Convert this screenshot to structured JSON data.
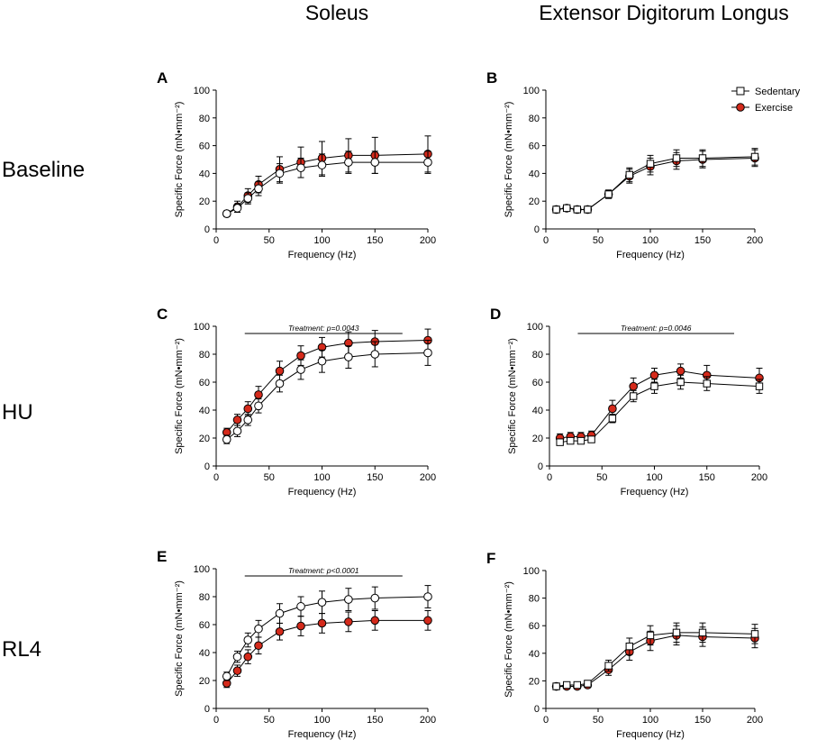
{
  "column_titles": [
    "Soleus",
    "Extensor Digitorum Longus"
  ],
  "row_titles": [
    "Baseline",
    "HU",
    "RL4"
  ],
  "legend": [
    {
      "label": "Sedentary",
      "marker": "open-square",
      "color": "#ffffff"
    },
    {
      "label": "Exercise",
      "marker": "filled-circle",
      "color": "#d42a1b"
    }
  ],
  "chart_data": [
    {
      "panel": "A",
      "type": "line",
      "muscle": "Soleus",
      "condition": "Baseline",
      "xlabel": "Frequency (Hz)",
      "ylabel": "Specific Force (mN•mm⁻²)",
      "xlim": [
        0,
        200
      ],
      "ylim": [
        0,
        100
      ],
      "xticks": [
        0,
        50,
        100,
        150,
        200
      ],
      "yticks": [
        0,
        20,
        40,
        60,
        80,
        100
      ],
      "x": [
        10,
        20,
        30,
        40,
        60,
        80,
        100,
        125,
        150,
        200
      ],
      "series": [
        {
          "name": "Sedentary",
          "marker": "circle",
          "filled": false,
          "values": [
            11,
            15,
            22,
            29,
            40,
            44,
            46,
            48,
            48,
            48
          ],
          "error": [
            2,
            3,
            4,
            5,
            7,
            7,
            8,
            8,
            8,
            8
          ]
        },
        {
          "name": "Exercise",
          "marker": "circle",
          "filled": true,
          "values": [
            11,
            16,
            24,
            32,
            43,
            48,
            51,
            53,
            53,
            54
          ],
          "error": [
            2,
            4,
            5,
            6,
            9,
            11,
            12,
            12,
            13,
            13
          ]
        }
      ],
      "annotation": null
    },
    {
      "panel": "B",
      "type": "line",
      "muscle": "Extensor Digitorum Longus",
      "condition": "Baseline",
      "xlabel": "Frequency (Hz)",
      "ylabel": "Specific Force (mN•mm⁻²)",
      "xlim": [
        0,
        200
      ],
      "ylim": [
        0,
        100
      ],
      "xticks": [
        0,
        50,
        100,
        150,
        200
      ],
      "yticks": [
        0,
        20,
        40,
        60,
        80,
        100
      ],
      "x": [
        10,
        20,
        30,
        40,
        60,
        80,
        100,
        125,
        150,
        200
      ],
      "series": [
        {
          "name": "Sedentary",
          "marker": "square",
          "filled": false,
          "values": [
            14,
            15,
            14,
            14,
            25,
            39,
            47,
            51,
            51,
            52
          ],
          "error": [
            1,
            1,
            1,
            1,
            3,
            5,
            6,
            6,
            6,
            6
          ]
        },
        {
          "name": "Exercise",
          "marker": "circle",
          "filled": true,
          "values": [
            14,
            15,
            14,
            14,
            25,
            38,
            45,
            49,
            50,
            51
          ],
          "error": [
            1,
            1,
            1,
            1,
            3,
            5,
            6,
            6,
            6,
            6
          ]
        }
      ],
      "annotation": null
    },
    {
      "panel": "C",
      "type": "line",
      "muscle": "Soleus",
      "condition": "HU",
      "xlabel": "Frequency (Hz)",
      "ylabel": "Specific Force (mN•mm⁻²)",
      "xlim": [
        0,
        200
      ],
      "ylim": [
        0,
        100
      ],
      "xticks": [
        0,
        50,
        100,
        150,
        200
      ],
      "yticks": [
        0,
        20,
        40,
        60,
        80,
        100
      ],
      "x": [
        10,
        20,
        30,
        40,
        60,
        80,
        100,
        125,
        150,
        200
      ],
      "series": [
        {
          "name": "Sedentary",
          "marker": "circle",
          "filled": false,
          "values": [
            19,
            25,
            33,
            43,
            59,
            69,
            75,
            78,
            80,
            81
          ],
          "error": [
            3,
            4,
            4,
            5,
            6,
            7,
            8,
            8,
            9,
            9
          ]
        },
        {
          "name": "Exercise",
          "marker": "circle",
          "filled": true,
          "values": [
            24,
            33,
            41,
            51,
            68,
            79,
            85,
            88,
            89,
            90
          ],
          "error": [
            3,
            4,
            5,
            6,
            7,
            7,
            7,
            8,
            8,
            8
          ]
        }
      ],
      "annotation": {
        "text": "Treatment: p=0.0043",
        "x_from": 27,
        "x_to": 176
      }
    },
    {
      "panel": "D",
      "type": "line",
      "muscle": "Extensor Digitorum Longus",
      "condition": "HU",
      "xlabel": "Frequency (Hz)",
      "ylabel": "Specific Force (mN•mm⁻²)",
      "xlim": [
        0,
        200
      ],
      "ylim": [
        0,
        100
      ],
      "xticks": [
        0,
        50,
        100,
        150,
        200
      ],
      "yticks": [
        0,
        20,
        40,
        60,
        80,
        100
      ],
      "x": [
        10,
        20,
        30,
        40,
        60,
        80,
        100,
        125,
        150,
        200
      ],
      "series": [
        {
          "name": "Sedentary",
          "marker": "square",
          "filled": false,
          "values": [
            17,
            18,
            18,
            19,
            34,
            50,
            57,
            60,
            59,
            57
          ],
          "error": [
            2,
            2,
            2,
            2,
            3,
            4,
            5,
            5,
            5,
            5
          ]
        },
        {
          "name": "Exercise",
          "marker": "circle",
          "filled": true,
          "values": [
            20,
            21,
            21,
            22,
            41,
            57,
            65,
            68,
            65,
            63
          ],
          "error": [
            3,
            3,
            3,
            3,
            6,
            6,
            5,
            5,
            7,
            7
          ]
        }
      ],
      "annotation": {
        "text": "Treatment: p=0.0046",
        "x_from": 27,
        "x_to": 176
      }
    },
    {
      "panel": "E",
      "type": "line",
      "muscle": "Soleus",
      "condition": "RL4",
      "xlabel": "Frequency (Hz)",
      "ylabel": "Specific Force (mN•mm⁻²)",
      "xlim": [
        0,
        200
      ],
      "ylim": [
        0,
        100
      ],
      "xticks": [
        0,
        50,
        100,
        150,
        200
      ],
      "yticks": [
        0,
        20,
        40,
        60,
        80,
        100
      ],
      "x": [
        10,
        20,
        30,
        40,
        60,
        80,
        100,
        125,
        150,
        200
      ],
      "series": [
        {
          "name": "Sedentary",
          "marker": "circle",
          "filled": false,
          "values": [
            23,
            37,
            49,
            57,
            68,
            73,
            76,
            78,
            79,
            80
          ],
          "error": [
            3,
            4,
            5,
            6,
            7,
            7,
            8,
            8,
            8,
            8
          ]
        },
        {
          "name": "Exercise",
          "marker": "circle",
          "filled": true,
          "values": [
            18,
            27,
            37,
            45,
            55,
            59,
            61,
            62,
            63,
            63
          ],
          "error": [
            3,
            4,
            5,
            6,
            6,
            7,
            7,
            7,
            7,
            7
          ]
        }
      ],
      "annotation": {
        "text": "Treatment: p<0.0001",
        "x_from": 27,
        "x_to": 176
      }
    },
    {
      "panel": "F",
      "type": "line",
      "muscle": "Extensor Digitorum Longus",
      "condition": "RL4",
      "xlabel": "Frequency (Hz)",
      "ylabel": "Specific Force (mN•mm⁻²)",
      "xlim": [
        0,
        200
      ],
      "ylim": [
        0,
        100
      ],
      "xticks": [
        0,
        50,
        100,
        150,
        200
      ],
      "yticks": [
        0,
        20,
        40,
        60,
        80,
        100
      ],
      "x": [
        10,
        20,
        30,
        40,
        60,
        80,
        100,
        125,
        150,
        200
      ],
      "series": [
        {
          "name": "Sedentary",
          "marker": "square",
          "filled": false,
          "values": [
            16,
            17,
            17,
            18,
            31,
            45,
            53,
            55,
            55,
            54
          ],
          "error": [
            2,
            2,
            2,
            2,
            4,
            6,
            7,
            7,
            7,
            7
          ]
        },
        {
          "name": "Exercise",
          "marker": "circle",
          "filled": true,
          "values": [
            16,
            16,
            16,
            17,
            28,
            41,
            49,
            53,
            52,
            51
          ],
          "error": [
            2,
            2,
            2,
            2,
            4,
            6,
            7,
            7,
            7,
            7
          ]
        }
      ],
      "annotation": null
    }
  ]
}
